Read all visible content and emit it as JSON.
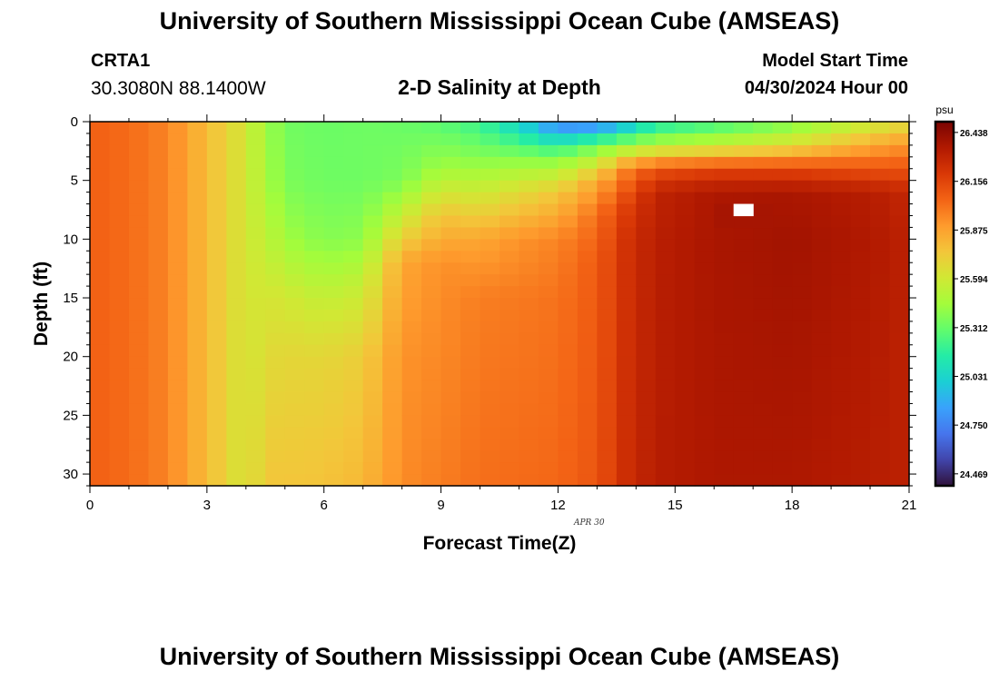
{
  "page": {
    "main_title": "University of Southern Mississippi Ocean Cube (AMSEAS)",
    "footer_title": "University of Southern Mississippi Ocean Cube (AMSEAS)",
    "station_id": "CRTA1",
    "station_coords": "30.3080N  88.1400W",
    "plot_title": "2-D Salinity at Depth",
    "start_time_label": "Model Start Time",
    "start_time_value": "04/30/2024 Hour 00"
  },
  "chart_data": {
    "type": "heatmap",
    "title": "2-D Salinity at Depth",
    "xlabel": "Forecast Time(Z)",
    "ylabel": "Depth (ft)",
    "date_label": "APR  30",
    "xlim": [
      0,
      21
    ],
    "ylim": [
      0,
      31
    ],
    "y_inverted": true,
    "x_ticks": [
      0,
      3,
      6,
      9,
      12,
      15,
      18,
      21
    ],
    "y_ticks": [
      0,
      5,
      10,
      15,
      20,
      25,
      30
    ],
    "colorbar": {
      "unit": "psu",
      "min": 24.4,
      "max": 26.5,
      "ticks": [
        26.438,
        26.156,
        25.875,
        25.594,
        25.312,
        25.031,
        24.75,
        24.469
      ],
      "colors": [
        "#30123b",
        "#4145ab",
        "#4675ed",
        "#39a2fc",
        "#1bcfd4",
        "#24eca6",
        "#61fc6c",
        "#a4fc3b",
        "#d1e834",
        "#f3c63a",
        "#fe9b2d",
        "#f36315",
        "#d93806",
        "#b11901",
        "#7a0402"
      ]
    },
    "grid": false,
    "max_marker": {
      "time": 16.9,
      "depth": 7.0,
      "label": "maximum salinity cell"
    },
    "profiles": [
      {
        "time": 0.0,
        "depths": [
          0,
          31
        ],
        "values": [
          26.06,
          26.06
        ]
      },
      {
        "time": 1.0,
        "depths": [
          0,
          31
        ],
        "values": [
          26.03,
          26.03
        ]
      },
      {
        "time": 2.0,
        "depths": [
          0,
          31
        ],
        "values": [
          25.96,
          25.96
        ]
      },
      {
        "time": 3.0,
        "depths": [
          0,
          31
        ],
        "values": [
          25.78,
          25.78
        ]
      },
      {
        "time": 3.5,
        "depths": [
          0,
          31
        ],
        "values": [
          25.7,
          25.7
        ]
      },
      {
        "time": 4.0,
        "depths": [
          0,
          31
        ],
        "values": [
          25.6,
          25.6
        ]
      },
      {
        "time": 4.5,
        "depths": [
          0,
          5,
          15,
          31
        ],
        "values": [
          25.45,
          25.48,
          25.62,
          25.75
        ]
      },
      {
        "time": 5.0,
        "depths": [
          0,
          5,
          10,
          15,
          20,
          31
        ],
        "values": [
          25.34,
          25.36,
          25.45,
          25.6,
          25.68,
          25.75
        ]
      },
      {
        "time": 6.0,
        "depths": [
          0,
          5,
          10,
          15,
          20,
          31
        ],
        "values": [
          25.32,
          25.33,
          25.38,
          25.55,
          25.68,
          25.76
        ]
      },
      {
        "time": 7.0,
        "depths": [
          0,
          5,
          10,
          14,
          20,
          31
        ],
        "values": [
          25.33,
          25.33,
          25.4,
          25.56,
          25.72,
          25.8
        ]
      },
      {
        "time": 8.0,
        "depths": [
          0,
          5,
          8,
          12,
          20,
          31
        ],
        "values": [
          25.32,
          25.36,
          25.56,
          25.86,
          25.92,
          25.94
        ]
      },
      {
        "time": 9.0,
        "depths": [
          0,
          4,
          8,
          12,
          31
        ],
        "values": [
          25.28,
          25.45,
          25.76,
          25.93,
          25.98
        ]
      },
      {
        "time": 10.0,
        "depths": [
          0,
          3,
          6,
          10,
          15,
          31
        ],
        "values": [
          25.2,
          25.38,
          25.58,
          25.86,
          25.98,
          26.02
        ]
      },
      {
        "time": 11.0,
        "depths": [
          0,
          3,
          6,
          10,
          15,
          31
        ],
        "values": [
          25.0,
          25.38,
          25.66,
          25.92,
          25.99,
          26.03
        ]
      },
      {
        "time": 12.0,
        "depths": [
          0,
          3,
          6,
          10,
          15,
          31
        ],
        "values": [
          24.72,
          25.36,
          25.74,
          25.96,
          26.01,
          26.04
        ]
      },
      {
        "time": 13.0,
        "depths": [
          0,
          2,
          5,
          8,
          12,
          31
        ],
        "values": [
          24.7,
          25.32,
          25.84,
          26.02,
          26.08,
          26.1
        ]
      },
      {
        "time": 13.8,
        "depths": [
          0,
          2,
          4,
          7,
          10,
          31
        ],
        "values": [
          24.9,
          25.42,
          25.98,
          26.18,
          26.24,
          26.26
        ]
      },
      {
        "time": 14.5,
        "depths": [
          0,
          2,
          4,
          6,
          10,
          31
        ],
        "values": [
          25.1,
          25.5,
          26.1,
          26.3,
          26.32,
          26.33
        ]
      },
      {
        "time": 16.0,
        "depths": [
          0,
          2,
          4,
          6,
          10,
          31
        ],
        "values": [
          25.2,
          25.55,
          26.15,
          26.36,
          26.37,
          26.36
        ]
      },
      {
        "time": 18.0,
        "depths": [
          0,
          2,
          4,
          6,
          10,
          31
        ],
        "values": [
          25.35,
          25.65,
          26.15,
          26.37,
          26.39,
          26.36
        ]
      },
      {
        "time": 20.0,
        "depths": [
          0,
          2,
          4,
          6,
          10,
          31
        ],
        "values": [
          25.55,
          25.85,
          26.1,
          26.33,
          26.35,
          26.33
        ]
      },
      {
        "time": 21.0,
        "depths": [
          0,
          2,
          4,
          6,
          10,
          31
        ],
        "values": [
          25.65,
          25.92,
          26.1,
          26.28,
          26.31,
          26.31
        ]
      }
    ]
  }
}
